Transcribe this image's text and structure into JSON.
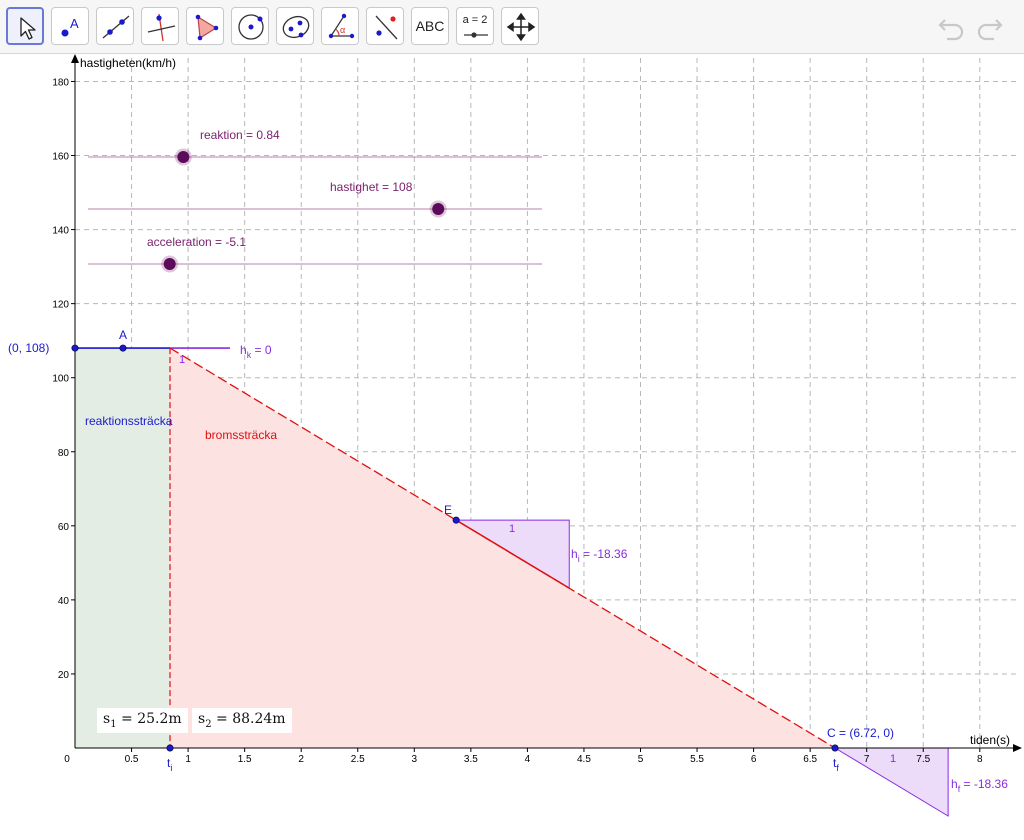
{
  "toolbar": {
    "tools": [
      {
        "name": "move-tool",
        "icon": "arrow-cursor-icon"
      },
      {
        "name": "point-tool",
        "icon": "point-icon",
        "label": "A"
      },
      {
        "name": "line-tool",
        "icon": "line-icon"
      },
      {
        "name": "perpendicular-tool",
        "icon": "perpendicular-line-icon"
      },
      {
        "name": "polygon-tool",
        "icon": "polygon-icon"
      },
      {
        "name": "circle-tool",
        "icon": "circle-icon"
      },
      {
        "name": "ellipse-tool",
        "icon": "ellipse-icon"
      },
      {
        "name": "angle-tool",
        "icon": "angle-icon",
        "label": "α"
      },
      {
        "name": "reflect-tool",
        "icon": "reflect-icon"
      },
      {
        "name": "text-tool",
        "icon": "text-icon",
        "label": "ABC"
      },
      {
        "name": "slider-tool",
        "icon": "slider-icon",
        "label": "a = 2"
      },
      {
        "name": "move-graphics-tool",
        "icon": "move-arrows-icon"
      }
    ],
    "undo_icon": "undo-icon",
    "redo_icon": "redo-icon"
  },
  "graph": {
    "xlabel": "tiden(s)",
    "ylabel": "hastigheten(km/h)",
    "x_ticks": [
      "0",
      "0.5",
      "1",
      "1.5",
      "2",
      "2.5",
      "3",
      "3.5",
      "4",
      "4.5",
      "5",
      "5.5",
      "6",
      "6.5",
      "7",
      "7.5",
      "8"
    ],
    "y_ticks": [
      "20",
      "40",
      "60",
      "80",
      "100",
      "120",
      "140",
      "160",
      "180"
    ],
    "grid": true,
    "colors": {
      "slider": "#7a1f6b",
      "slider_knob": "#5c0a5a",
      "blue": "#1a1acc",
      "red": "#dd1111",
      "purple": "#8a2be2",
      "green_fill": "#e4ede4",
      "red_fill": "#fde2e2",
      "purple_fill": "#ecdcfa"
    },
    "sliders": [
      {
        "name": "reaktion",
        "label": "reaktion = 0.84",
        "value": 0.84,
        "min": 0,
        "max": 4
      },
      {
        "name": "hastighet",
        "label": "hastighet = 108",
        "value": 108,
        "min": 0,
        "max": 140
      },
      {
        "name": "acceleration",
        "label": "acceleration = -5.1",
        "value": -5.1,
        "min": -6,
        "max": -1
      }
    ],
    "points": {
      "start_label": "(0, 108)",
      "A_label": "A",
      "E_label": "E",
      "C_label": "C = (6.72, 0)",
      "ti_label": "t",
      "ti_sub": "i",
      "tf_label": "t",
      "tf_sub": "f"
    },
    "annotations": {
      "hk": "h",
      "hk_sub": "k",
      "hk_value": " = 0",
      "hk_one": "1",
      "hi": "h",
      "hi_sub": "i",
      "hi_value": " = -18.36",
      "hi_one": "1",
      "hf": "h",
      "hf_sub": "f",
      "hf_value": " = -18.36",
      "hf_one": "1",
      "reaktion_area": "reaktionssträcka",
      "broms_area": "bromssträcka"
    },
    "distances": {
      "s1": "s",
      "s1_sub": "1",
      "s1_value": " = 25.2m",
      "s2": "s",
      "s2_sub": "2",
      "s2_value": " = 88.24m"
    }
  }
}
